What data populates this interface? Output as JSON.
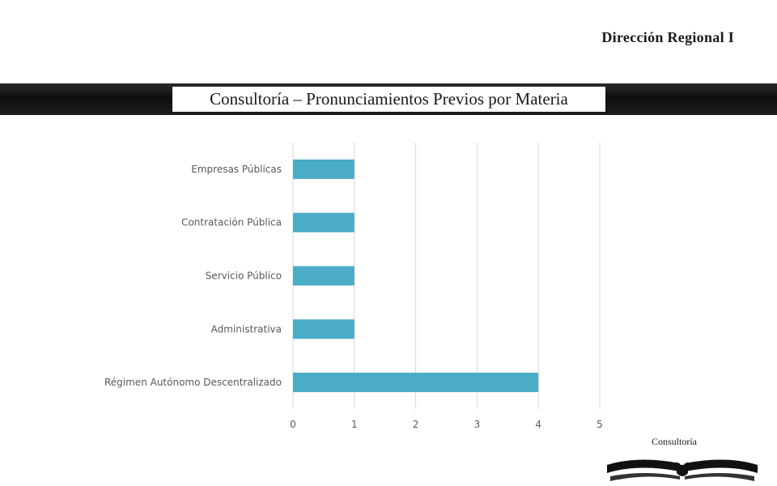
{
  "header": {
    "region": "Dirección Regional I",
    "title": "Consultoría – Pronunciamientos Previos por  Materia"
  },
  "footer": {
    "label": "Consultoría"
  },
  "colors": {
    "bar": "#4bacc6",
    "grid": "#d9d9d9",
    "text": "#595959"
  },
  "chart_data": {
    "type": "bar",
    "orientation": "horizontal",
    "categories": [
      "Empresas Públicas",
      "Contratación Pública",
      "Servicio Público",
      "Administrativa",
      "Régimen Autónomo Descentralizado"
    ],
    "values": [
      1,
      1,
      1,
      1,
      4
    ],
    "xlim": [
      0,
      5
    ],
    "xticks": [
      0,
      1,
      2,
      3,
      4,
      5
    ],
    "grid": true,
    "legend": "none"
  }
}
